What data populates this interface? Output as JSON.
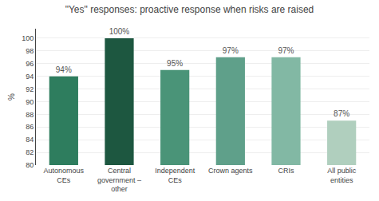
{
  "chart_data": {
    "type": "bar",
    "title": "\"Yes\" responses: proactive response when risks are raised",
    "categories": [
      "Autonomous\nCEs",
      "Central\ngovernment –\nother",
      "Independent\nCEs",
      "Crown agents",
      "CRIs",
      "All public\nentities"
    ],
    "values": [
      94,
      100,
      95,
      97,
      97,
      87
    ],
    "value_labels": [
      "94%",
      "100%",
      "95%",
      "97%",
      "97%",
      "87%"
    ],
    "data_labels": true,
    "colors": [
      "#2e7d5e",
      "#1d5740",
      "#4a9478",
      "#5fa08a",
      "#82b8a4",
      "#b0cfbe"
    ],
    "ylabel": "%",
    "ylim": [
      80,
      101.5
    ],
    "yticks": [
      80,
      82,
      84,
      86,
      88,
      90,
      92,
      94,
      96,
      98,
      100
    ],
    "grid": true
  }
}
